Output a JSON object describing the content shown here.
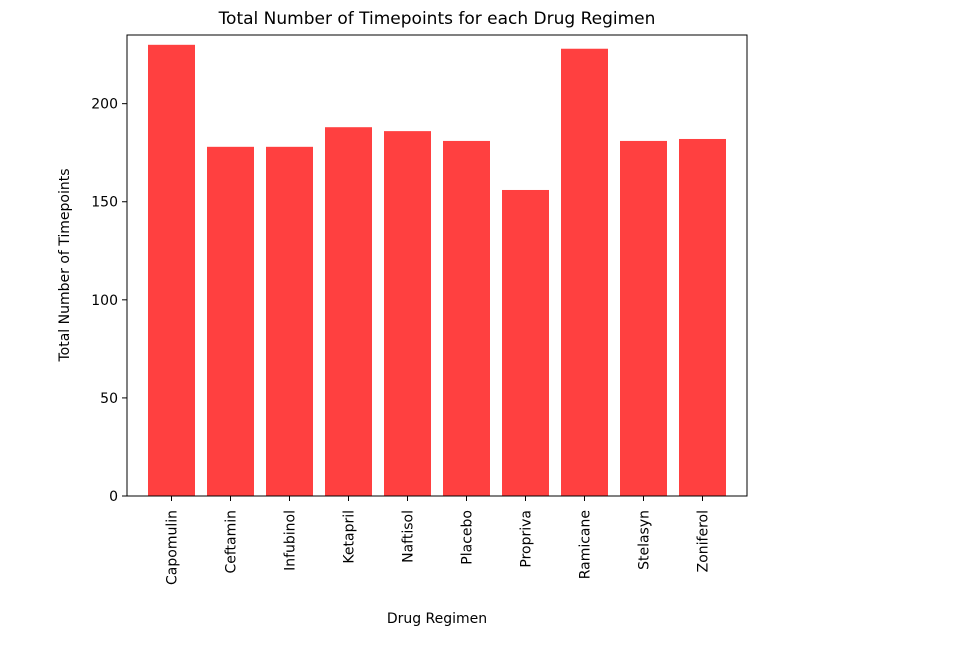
{
  "chart_data": {
    "type": "bar",
    "title": "Total Number of Timepoints for each Drug Regimen",
    "xlabel": "Drug Regimen",
    "ylabel": "Total Number of Timepoints",
    "categories": [
      "Capomulin",
      "Ceftamin",
      "Infubinol",
      "Ketapril",
      "Naftisol",
      "Placebo",
      "Propriva",
      "Ramicane",
      "Stelasyn",
      "Zoniferol"
    ],
    "values": [
      230,
      178,
      178,
      188,
      186,
      181,
      156,
      228,
      181,
      182
    ],
    "ylim": [
      0,
      235
    ],
    "yticks": [
      0,
      50,
      100,
      150,
      200
    ],
    "grid": false,
    "bar_color": "#ff4040",
    "axis_color": "#000000"
  }
}
